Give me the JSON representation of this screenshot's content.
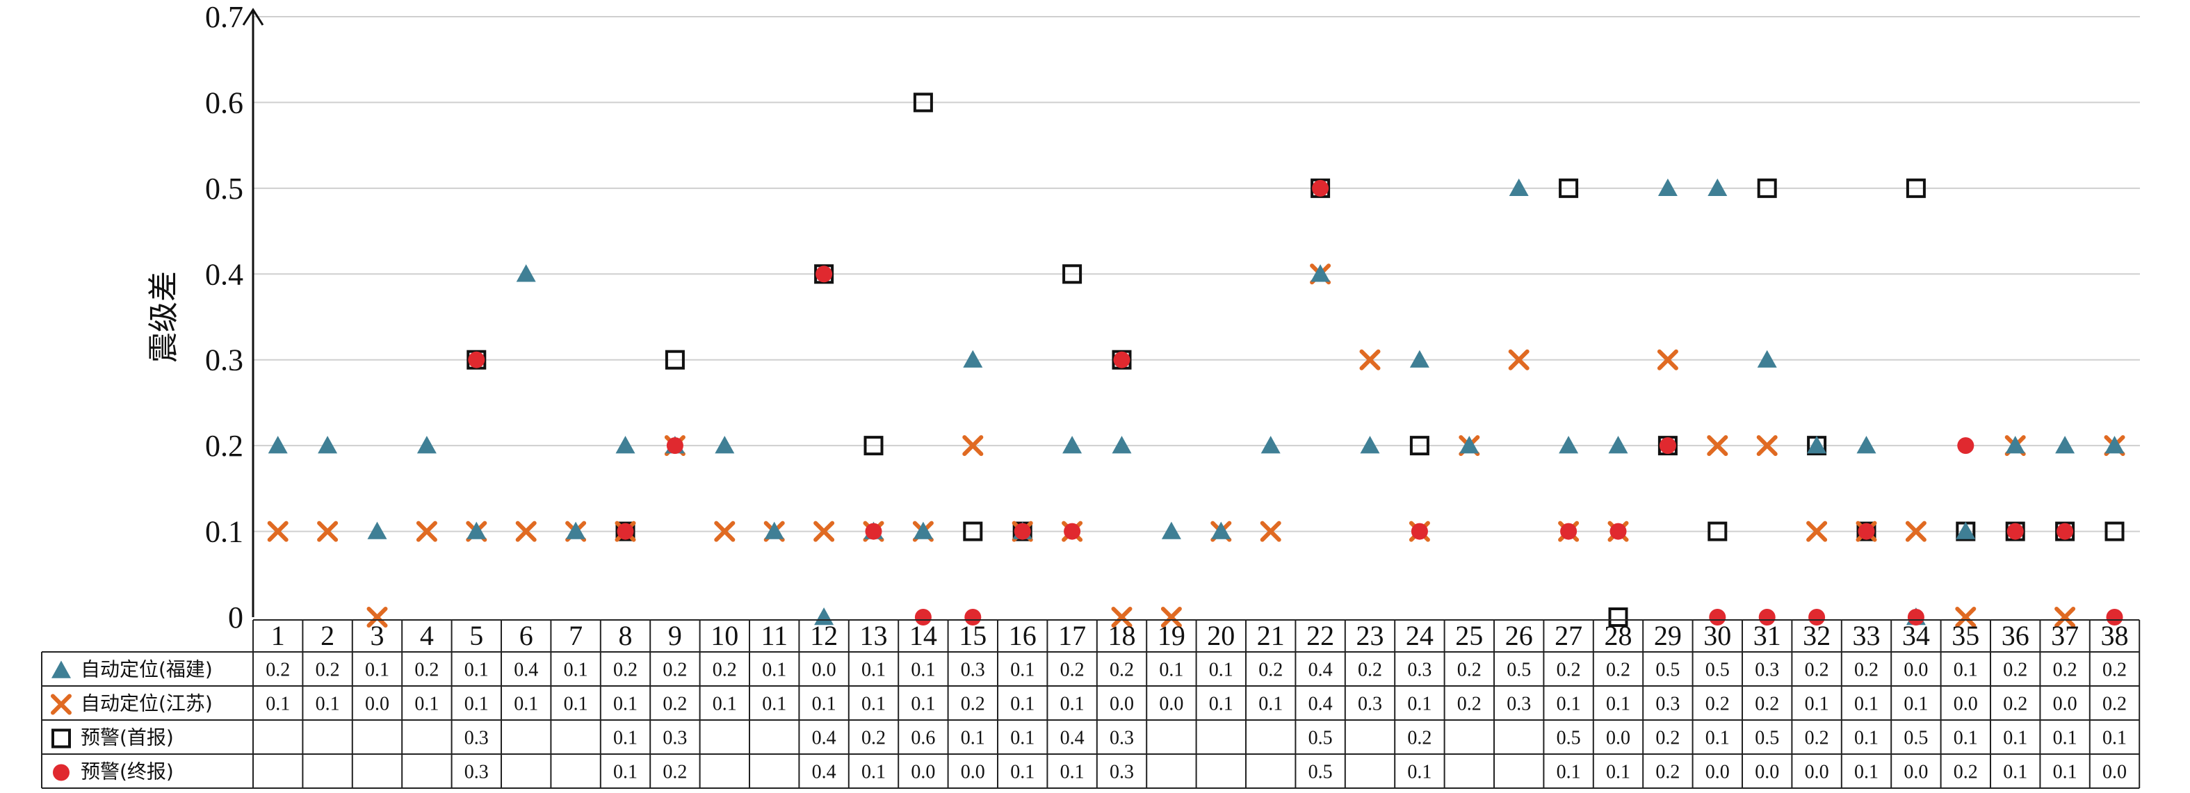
{
  "chart_data": {
    "type": "scatter",
    "ylabel": "震级差",
    "ylim": [
      0,
      0.7
    ],
    "yticks": [
      "0",
      "0.1",
      "0.2",
      "0.3",
      "0.4",
      "0.5",
      "0.6",
      "0.7"
    ],
    "categories": [
      "1",
      "2",
      "3",
      "4",
      "5",
      "6",
      "7",
      "8",
      "9",
      "10",
      "11",
      "12",
      "13",
      "14",
      "15",
      "16",
      "17",
      "18",
      "19",
      "20",
      "21",
      "22",
      "23",
      "24",
      "25",
      "26",
      "27",
      "28",
      "29",
      "30",
      "31",
      "32",
      "33",
      "34",
      "35",
      "36",
      "37",
      "38"
    ],
    "grid": true,
    "series": [
      {
        "name": "自动定位(福建)",
        "marker": "triangle",
        "color": "#3f7f95",
        "values": [
          0.2,
          0.2,
          0.1,
          0.2,
          0.1,
          0.4,
          0.1,
          0.2,
          0.2,
          0.2,
          0.1,
          0.0,
          0.1,
          0.1,
          0.3,
          0.1,
          0.2,
          0.2,
          0.1,
          0.1,
          0.2,
          0.4,
          0.2,
          0.3,
          0.2,
          0.5,
          0.2,
          0.2,
          0.5,
          0.5,
          0.3,
          0.2,
          0.2,
          0.0,
          0.1,
          0.2,
          0.2,
          0.2
        ]
      },
      {
        "name": "自动定位(江苏)",
        "marker": "cross",
        "color": "#e06a22",
        "values": [
          0.1,
          0.1,
          0.0,
          0.1,
          0.1,
          0.1,
          0.1,
          0.1,
          0.2,
          0.1,
          0.1,
          0.1,
          0.1,
          0.1,
          0.2,
          0.1,
          0.1,
          0.0,
          0.0,
          0.1,
          0.1,
          0.4,
          0.3,
          0.1,
          0.2,
          0.3,
          0.1,
          0.1,
          0.3,
          0.2,
          0.2,
          0.1,
          0.1,
          0.1,
          0.0,
          0.2,
          0.0,
          0.2
        ]
      },
      {
        "name": "预警(首报)",
        "marker": "square",
        "color": "#111111",
        "values": [
          null,
          null,
          null,
          null,
          0.3,
          null,
          null,
          0.1,
          0.3,
          null,
          null,
          0.4,
          0.2,
          0.6,
          0.1,
          0.1,
          0.4,
          0.3,
          null,
          null,
          null,
          0.5,
          null,
          0.2,
          null,
          null,
          0.5,
          0.0,
          0.2,
          0.1,
          0.5,
          0.2,
          0.1,
          0.5,
          0.1,
          0.1,
          0.1,
          0.1
        ]
      },
      {
        "name": "预警(终报)",
        "marker": "circle",
        "color": "#e0292f",
        "values": [
          null,
          null,
          null,
          null,
          0.3,
          null,
          null,
          0.1,
          0.2,
          null,
          null,
          0.4,
          0.1,
          0.0,
          0.0,
          0.1,
          0.1,
          0.3,
          null,
          null,
          null,
          0.5,
          null,
          0.1,
          null,
          null,
          0.1,
          0.1,
          0.2,
          0.0,
          0.0,
          0.0,
          0.1,
          0.0,
          0.2,
          0.1,
          0.1,
          0.0
        ]
      }
    ]
  }
}
